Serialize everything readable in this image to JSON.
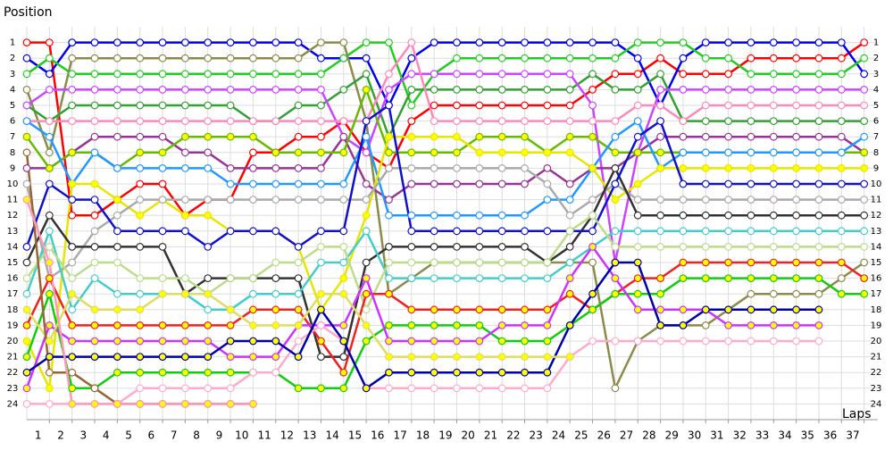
{
  "chart_data": {
    "type": "line",
    "ylabel": "Position",
    "xlabel": "Laps",
    "x": [
      0,
      1,
      2,
      3,
      4,
      5,
      6,
      7,
      8,
      9,
      10,
      11,
      12,
      13,
      14,
      15,
      16,
      17,
      18,
      19,
      20,
      21,
      22,
      23,
      24,
      25,
      26,
      27,
      28,
      29,
      30,
      31,
      32,
      33,
      34,
      35,
      36,
      37
    ],
    "xlim": [
      0,
      38
    ],
    "xticks": [
      1,
      2,
      3,
      4,
      5,
      6,
      7,
      8,
      9,
      10,
      11,
      12,
      13,
      14,
      15,
      16,
      17,
      18,
      19,
      20,
      21,
      22,
      23,
      24,
      25,
      26,
      27,
      28,
      29,
      30,
      31,
      32,
      33,
      34,
      35,
      36,
      37
    ],
    "ylim": [
      25,
      0
    ],
    "yticks": [
      1,
      2,
      3,
      4,
      5,
      6,
      7,
      8,
      9,
      10,
      11,
      12,
      13,
      14,
      15,
      16,
      17,
      18,
      19,
      20,
      21,
      22,
      23,
      24
    ],
    "grid": true,
    "series": [
      {
        "color": "#ff0000",
        "marker": "#ffffff",
        "values": [
          1,
          1,
          12,
          12,
          11,
          10,
          10,
          12,
          11,
          11,
          8,
          8,
          7,
          7,
          6,
          8,
          9,
          6,
          5,
          5,
          5,
          5,
          5,
          5,
          5,
          4,
          3,
          3,
          2,
          3,
          3,
          3,
          2,
          2,
          2,
          2,
          2,
          1
        ]
      },
      {
        "color": "#0000ee",
        "marker": "#ffffff",
        "values": [
          2,
          3,
          1,
          1,
          1,
          1,
          1,
          1,
          1,
          1,
          1,
          1,
          1,
          2,
          2,
          2,
          5,
          2,
          1,
          1,
          1,
          1,
          1,
          1,
          1,
          1,
          1,
          2,
          5,
          2,
          1,
          1,
          1,
          1,
          1,
          1,
          1,
          3
        ]
      },
      {
        "color": "#22cc22",
        "marker": "#ffffff",
        "values": [
          3,
          2,
          3,
          3,
          3,
          3,
          3,
          3,
          3,
          3,
          3,
          3,
          3,
          3,
          2,
          1,
          1,
          5,
          3,
          2,
          2,
          2,
          2,
          2,
          2,
          2,
          2,
          1,
          1,
          1,
          2,
          2,
          3,
          3,
          3,
          3,
          3,
          2
        ]
      },
      {
        "color": "#8b8b4a",
        "marker": "#ffffff",
        "values": [
          4,
          8,
          2,
          2,
          2,
          2,
          2,
          2,
          2,
          2,
          2,
          2,
          2,
          1,
          1,
          6,
          17,
          16,
          15,
          15,
          15,
          15,
          15,
          15,
          15,
          15,
          23,
          20,
          19,
          19,
          19,
          18,
          17,
          17,
          17,
          17,
          16,
          15
        ]
      },
      {
        "color": "#33a033",
        "marker": "#ffffff",
        "values": [
          5,
          6,
          5,
          5,
          5,
          5,
          5,
          5,
          5,
          5,
          6,
          6,
          5,
          5,
          4,
          3,
          7,
          4,
          4,
          4,
          4,
          4,
          4,
          4,
          4,
          3,
          4,
          4,
          3,
          6,
          6,
          6,
          6,
          6,
          6,
          6,
          6,
          6
        ]
      },
      {
        "color": "#cc44ff",
        "marker": "#ffffff",
        "values": [
          5,
          4,
          4,
          4,
          4,
          4,
          4,
          4,
          4,
          4,
          4,
          4,
          4,
          4,
          7,
          8,
          4,
          3,
          3,
          3,
          3,
          3,
          3,
          3,
          3,
          5,
          15,
          8,
          4,
          4,
          4,
          4,
          4,
          4,
          4,
          4,
          4,
          4
        ]
      },
      {
        "color": "#ff88bb",
        "marker": "#ffffff",
        "values": [
          6,
          6,
          6,
          6,
          6,
          6,
          6,
          6,
          6,
          6,
          6,
          6,
          6,
          6,
          6,
          6,
          3,
          1,
          6,
          6,
          6,
          6,
          6,
          6,
          6,
          6,
          6,
          5,
          5,
          6,
          5,
          5,
          5,
          5,
          5,
          5,
          5,
          5
        ]
      },
      {
        "color": "#993399",
        "marker": "#ffffff",
        "values": [
          9,
          9,
          8,
          7,
          7,
          7,
          7,
          8,
          8,
          9,
          9,
          9,
          9,
          9,
          7,
          10,
          11,
          10,
          10,
          10,
          10,
          10,
          10,
          9,
          10,
          9,
          9,
          8,
          7,
          7,
          7,
          7,
          7,
          7,
          7,
          7,
          7,
          8
        ]
      },
      {
        "color": "#66bb00",
        "marker": "#ffff00",
        "values": [
          7,
          9,
          8,
          8,
          9,
          8,
          8,
          7,
          7,
          7,
          7,
          8,
          8,
          8,
          8,
          4,
          8,
          8,
          8,
          8,
          7,
          7,
          7,
          8,
          7,
          7,
          8,
          8,
          8,
          8,
          8,
          8,
          8,
          8,
          8,
          8,
          8,
          8
        ]
      },
      {
        "color": "#2299ff",
        "marker": "#ffffff",
        "values": [
          6,
          7,
          10,
          8,
          9,
          9,
          9,
          9,
          9,
          10,
          10,
          10,
          10,
          10,
          10,
          7,
          12,
          12,
          12,
          12,
          12,
          12,
          12,
          11,
          11,
          9,
          7,
          6,
          9,
          8,
          8,
          8,
          8,
          8,
          8,
          8,
          8,
          7
        ]
      },
      {
        "color": "#e6e600",
        "marker": "#ffff00",
        "values": [
          20,
          23,
          10,
          10,
          11,
          12,
          11,
          12,
          12,
          13,
          13,
          13,
          14,
          18,
          16,
          12,
          7,
          7,
          7,
          7,
          8,
          8,
          8,
          8,
          8,
          9,
          11,
          10,
          9,
          9,
          9,
          9,
          9,
          9,
          9,
          9,
          9,
          9
        ]
      },
      {
        "color": "#aaaaaa",
        "marker": "#ffffff",
        "values": [
          10,
          16,
          15,
          13,
          12,
          11,
          11,
          11,
          11,
          11,
          11,
          11,
          11,
          11,
          11,
          11,
          9,
          9,
          9,
          9,
          9,
          9,
          9,
          10,
          12,
          11,
          10,
          11,
          11,
          11,
          11,
          11,
          11,
          11,
          11,
          11,
          11,
          11
        ]
      },
      {
        "color": "#333333",
        "marker": "#ffffff",
        "values": [
          15,
          12,
          14,
          14,
          14,
          14,
          14,
          17,
          16,
          16,
          16,
          16,
          16,
          21,
          21,
          15,
          14,
          14,
          14,
          14,
          14,
          14,
          14,
          15,
          14,
          12,
          9,
          12,
          12,
          12,
          12,
          12,
          12,
          12,
          12,
          12,
          12,
          12
        ]
      },
      {
        "color": "#1111cc",
        "marker": "#ffffff",
        "values": [
          14,
          10,
          11,
          11,
          13,
          13,
          13,
          13,
          14,
          13,
          13,
          13,
          14,
          13,
          13,
          6,
          5,
          13,
          13,
          13,
          13,
          13,
          13,
          13,
          13,
          13,
          10,
          7,
          6,
          10,
          10,
          10,
          10,
          10,
          10,
          10,
          10,
          10
        ]
      },
      {
        "color": "#44cccc",
        "marker": "#ffffff",
        "values": [
          17,
          13,
          18,
          16,
          17,
          17,
          17,
          17,
          18,
          18,
          17,
          17,
          17,
          15,
          15,
          13,
          16,
          16,
          16,
          16,
          16,
          16,
          16,
          16,
          15,
          14,
          13,
          13,
          13,
          13,
          13,
          13,
          13,
          13,
          13,
          13,
          13,
          13
        ]
      },
      {
        "color": "#bbdd88",
        "marker": "#ffffff",
        "values": [
          16,
          14,
          16,
          15,
          15,
          16,
          16,
          16,
          17,
          16,
          16,
          15,
          15,
          14,
          14,
          18,
          15,
          15,
          15,
          15,
          15,
          15,
          15,
          15,
          13,
          12,
          14,
          14,
          14,
          14,
          14,
          14,
          14,
          14,
          14,
          14,
          14,
          14
        ]
      },
      {
        "color": "#ee2222",
        "marker": "#ffff00",
        "values": [
          19,
          16,
          19,
          19,
          19,
          19,
          19,
          19,
          19,
          19,
          18,
          18,
          18,
          20,
          22,
          17,
          17,
          18,
          18,
          18,
          18,
          18,
          18,
          18,
          17,
          18,
          17,
          16,
          16,
          15,
          15,
          15,
          15,
          15,
          15,
          15,
          15,
          16
        ]
      },
      {
        "color": "#11cc11",
        "marker": "#ffff00",
        "values": [
          21,
          17,
          23,
          23,
          22,
          22,
          22,
          22,
          22,
          22,
          22,
          22,
          23,
          23,
          23,
          20,
          19,
          19,
          19,
          19,
          19,
          20,
          20,
          20,
          19,
          18,
          17,
          17,
          17,
          16,
          16,
          16,
          16,
          16,
          16,
          16,
          17,
          17
        ]
      },
      {
        "color": "#cc33ff",
        "marker": "#ffff00",
        "values": [
          23,
          19,
          20,
          20,
          20,
          20,
          20,
          20,
          20,
          21,
          21,
          21,
          19,
          19,
          19,
          16,
          20,
          20,
          20,
          20,
          20,
          19,
          19,
          19,
          16,
          14,
          16,
          18,
          18,
          18,
          18,
          19,
          19,
          19,
          19,
          19,
          null,
          null
        ]
      },
      {
        "color": "#ffaacc",
        "marker": "#ffffff",
        "values": [
          24,
          24,
          24,
          24,
          24,
          23,
          23,
          23,
          23,
          23,
          22,
          22,
          20,
          19,
          20,
          23,
          23,
          23,
          23,
          23,
          23,
          23,
          23,
          23,
          21,
          20,
          20,
          20,
          20,
          20,
          20,
          20,
          20,
          20,
          20,
          20,
          null,
          null
        ]
      },
      {
        "color": "#0000aa",
        "marker": "#ffff00",
        "values": [
          22,
          21,
          21,
          21,
          21,
          21,
          21,
          21,
          21,
          20,
          20,
          20,
          21,
          18,
          20,
          23,
          22,
          22,
          22,
          22,
          22,
          22,
          22,
          22,
          19,
          17,
          15,
          15,
          19,
          19,
          18,
          18,
          18,
          18,
          18,
          18,
          null,
          null
        ]
      },
      {
        "color": "#dddd66",
        "marker": "#ffff00",
        "values": [
          18,
          20,
          17,
          18,
          18,
          18,
          17,
          17,
          17,
          18,
          19,
          19,
          19,
          17,
          17,
          19,
          21,
          21,
          21,
          21,
          21,
          21,
          21,
          21,
          21,
          null,
          null,
          null,
          null,
          null,
          null,
          null,
          null,
          null,
          null,
          null,
          null,
          null
        ]
      },
      {
        "color": "#996633",
        "marker": "#ffffff",
        "values": [
          8,
          22,
          22,
          23,
          24,
          24,
          24,
          24,
          24,
          24,
          24,
          null,
          null,
          null,
          null,
          null,
          null,
          null,
          null,
          null,
          null,
          null,
          null,
          null,
          null,
          null,
          null,
          null,
          null,
          null,
          null,
          null,
          null,
          null,
          null,
          null,
          null,
          null
        ]
      },
      {
        "color": "#ff99bb",
        "marker": "#ffff00",
        "values": [
          11,
          15,
          24,
          24,
          24,
          24,
          24,
          24,
          24,
          24,
          24,
          null,
          null,
          null,
          null,
          null,
          null,
          null,
          null,
          null,
          null,
          null,
          null,
          null,
          null,
          null,
          null,
          null,
          null,
          null,
          null,
          null,
          null,
          null,
          null,
          null,
          null,
          null
        ]
      }
    ]
  }
}
